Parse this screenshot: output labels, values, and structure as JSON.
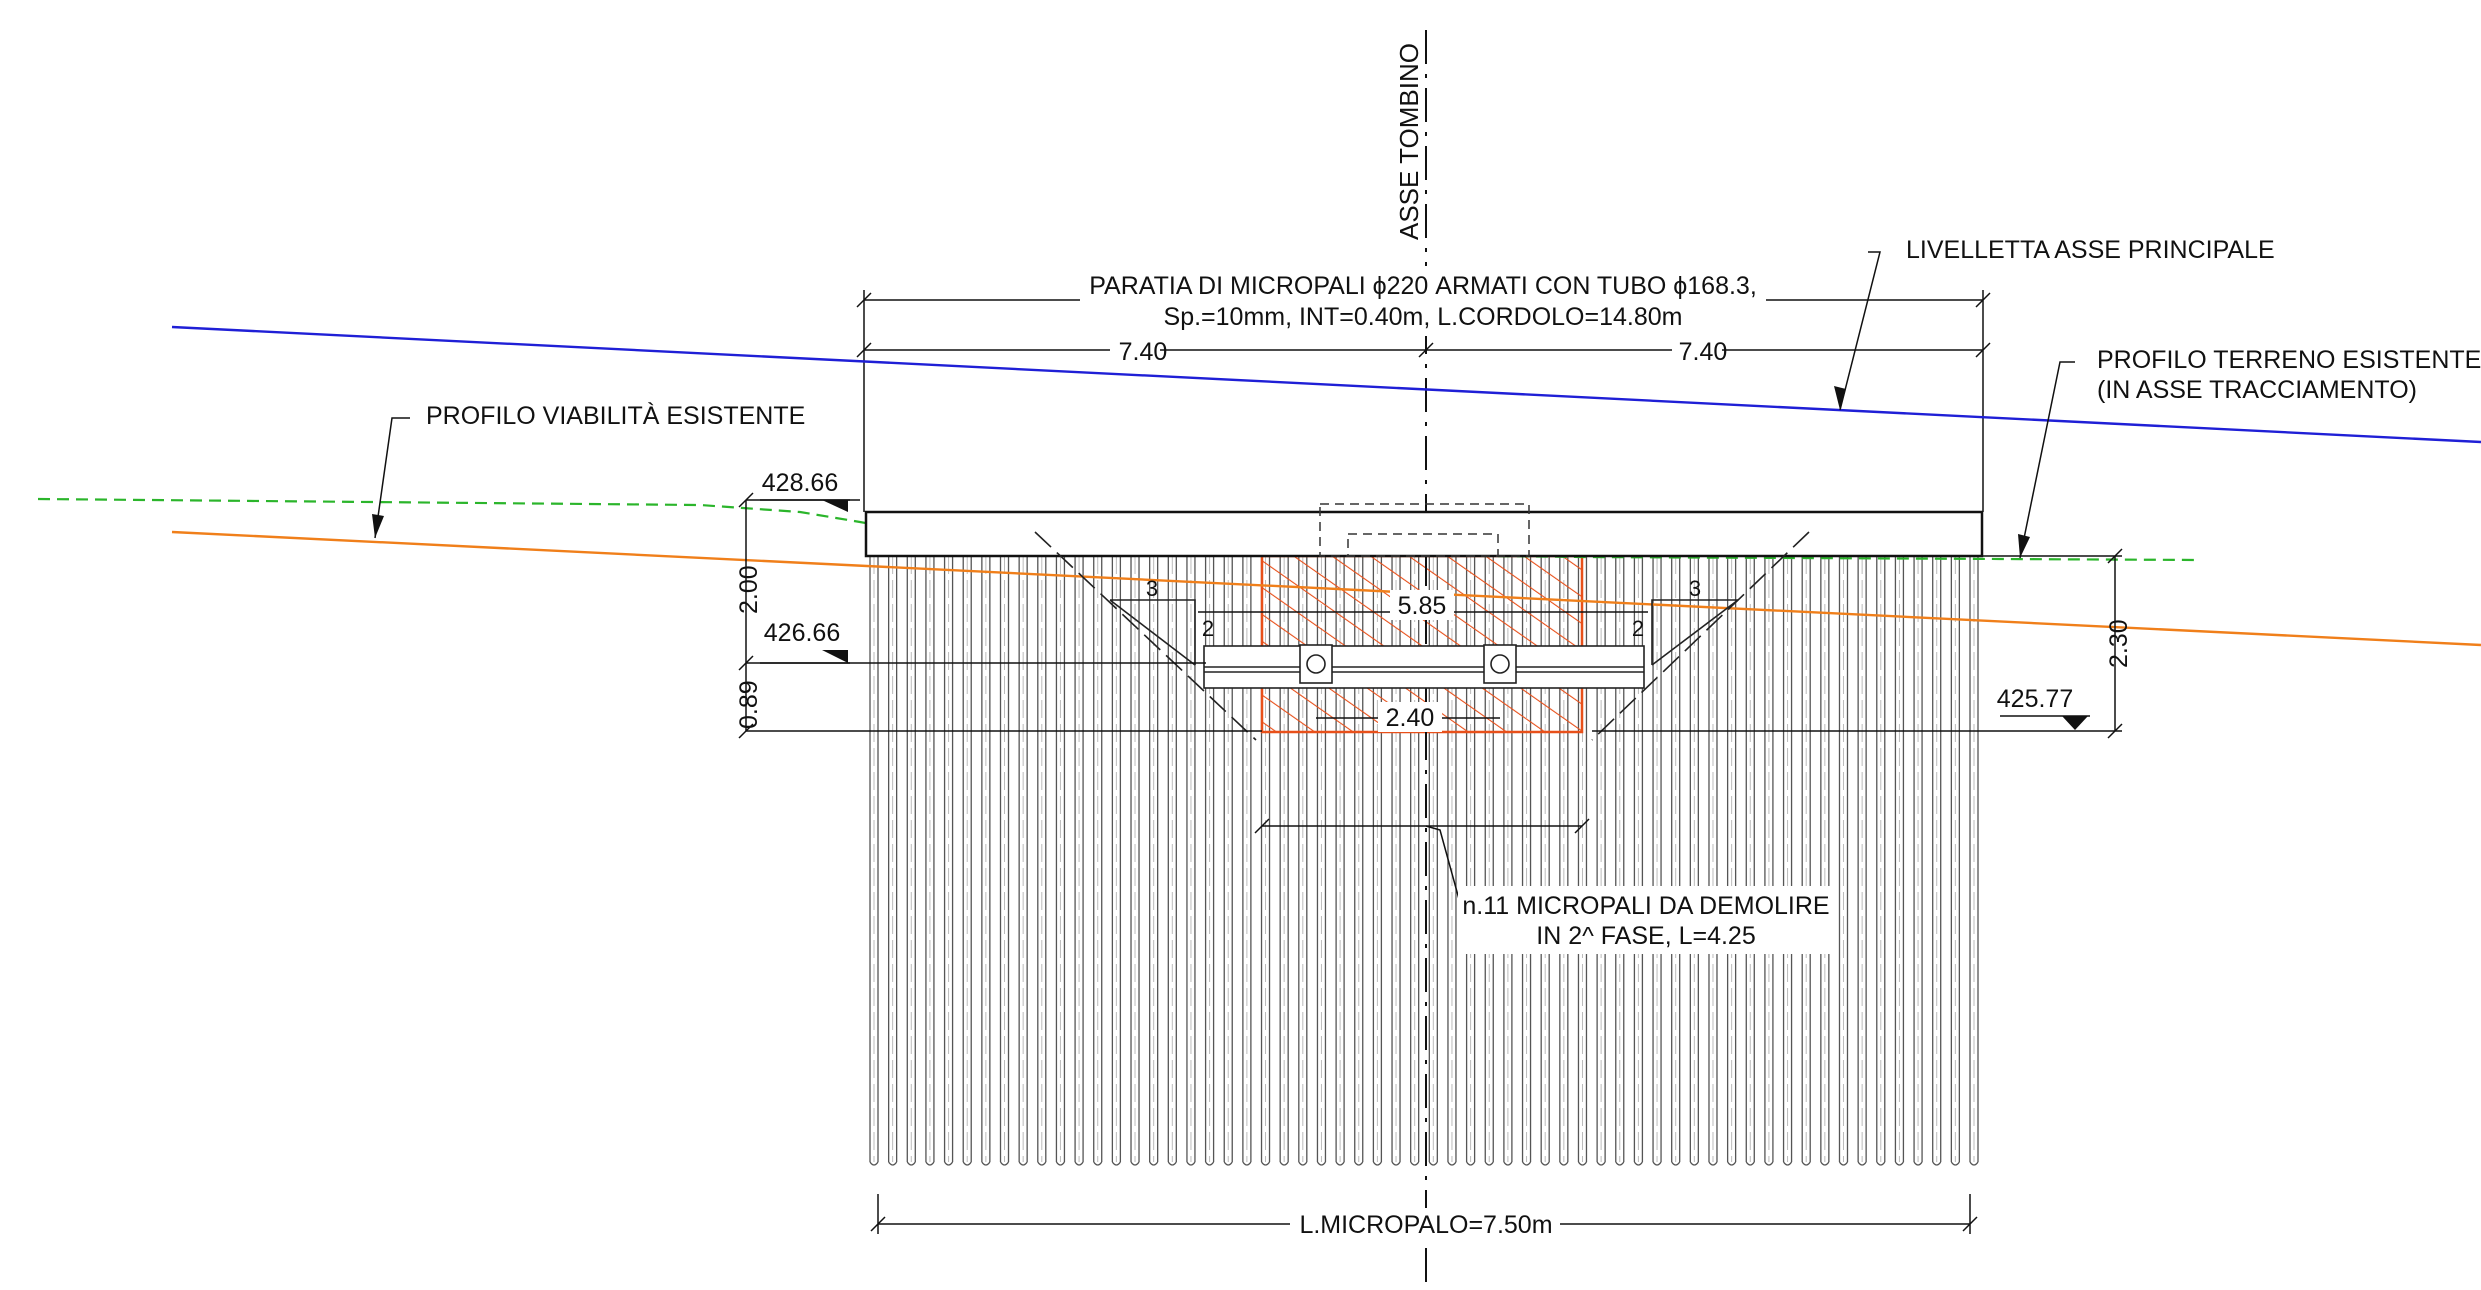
{
  "axis_label": "ASSE TOMBINO",
  "wall": {
    "title_line1": "PARATIA DI MICROPALI ϕ220 ARMATI CON TUBO ϕ168.3,",
    "title_line2": "Sp.=10mm, INT=0.40m, L.CORDOLO=14.80m",
    "half_left": "7.40",
    "half_right": "7.40",
    "pile_length": "L.MICROPALO=7.50m",
    "pile_count": 60
  },
  "labels": {
    "livelletta": "LIVELLETTA ASSE PRINCIPALE",
    "terreno_line1": "PROFILO TERRENO ESISTENTE",
    "terreno_line2": "(IN ASSE TRACCIAMENTO)",
    "viabilita": "PROFILO VIABILITÀ ESISTENTE",
    "demolish_line1": "n.11 MICROPALI DA DEMOLIRE",
    "demolish_line2": "IN 2^ FASE, L=4.25"
  },
  "elevations": {
    "top": "428.66",
    "mid": "426.66",
    "right": "425.77"
  },
  "dimensions": {
    "h_2_00": "2.00",
    "h_0_89": "0.89",
    "h_2_30": "2.30",
    "w_5_85": "5.85",
    "w_2_40": "2.40",
    "slope_run": "3",
    "slope_rise": "2"
  },
  "colors": {
    "livelletta": "#1f1fd6",
    "viabilita": "#f07f1a",
    "terreno": "#2bb52b",
    "demolish": "#e8501a",
    "ink": "#111111"
  }
}
